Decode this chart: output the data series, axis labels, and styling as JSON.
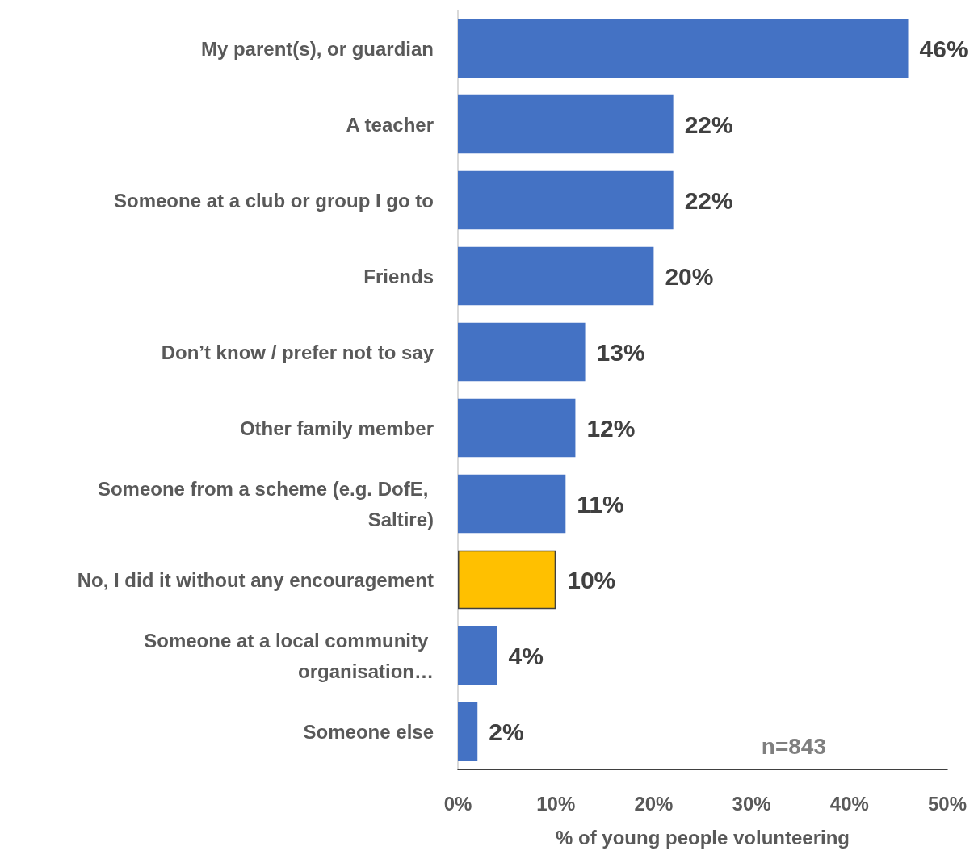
{
  "chart_data": {
    "type": "bar",
    "orientation": "horizontal",
    "xlabel": "% of young people volunteering",
    "categories": [
      "My parent(s), or guardian",
      "A teacher",
      "Someone at a club or group I go to",
      "Friends",
      "Don’t know / prefer not to say",
      "Other family member",
      "Someone from a scheme (e.g. DofE, Saltire)",
      "No, I did it without any encouragement",
      "Someone at a local community organisation…",
      "Someone else"
    ],
    "values": [
      46,
      22,
      22,
      20,
      13,
      12,
      11,
      10,
      4,
      2
    ],
    "value_labels": [
      "46%",
      "22%",
      "22%",
      "20%",
      "13%",
      "12%",
      "11%",
      "10%",
      "4%",
      "2%"
    ],
    "colors": [
      "#4472c4",
      "#4472c4",
      "#4472c4",
      "#4472c4",
      "#4472c4",
      "#4472c4",
      "#4472c4",
      "#ffc000",
      "#4472c4",
      "#4472c4"
    ],
    "xlim": [
      0,
      50
    ],
    "xticks": [
      {
        "value": 0,
        "label": "0%"
      },
      {
        "value": 10,
        "label": "10%"
      },
      {
        "value": 20,
        "label": "20%"
      },
      {
        "value": 30,
        "label": "30%"
      },
      {
        "value": 40,
        "label": "40%"
      },
      {
        "value": 50,
        "label": "50%"
      }
    ],
    "annotations": [
      "n=843"
    ],
    "grid": false
  }
}
